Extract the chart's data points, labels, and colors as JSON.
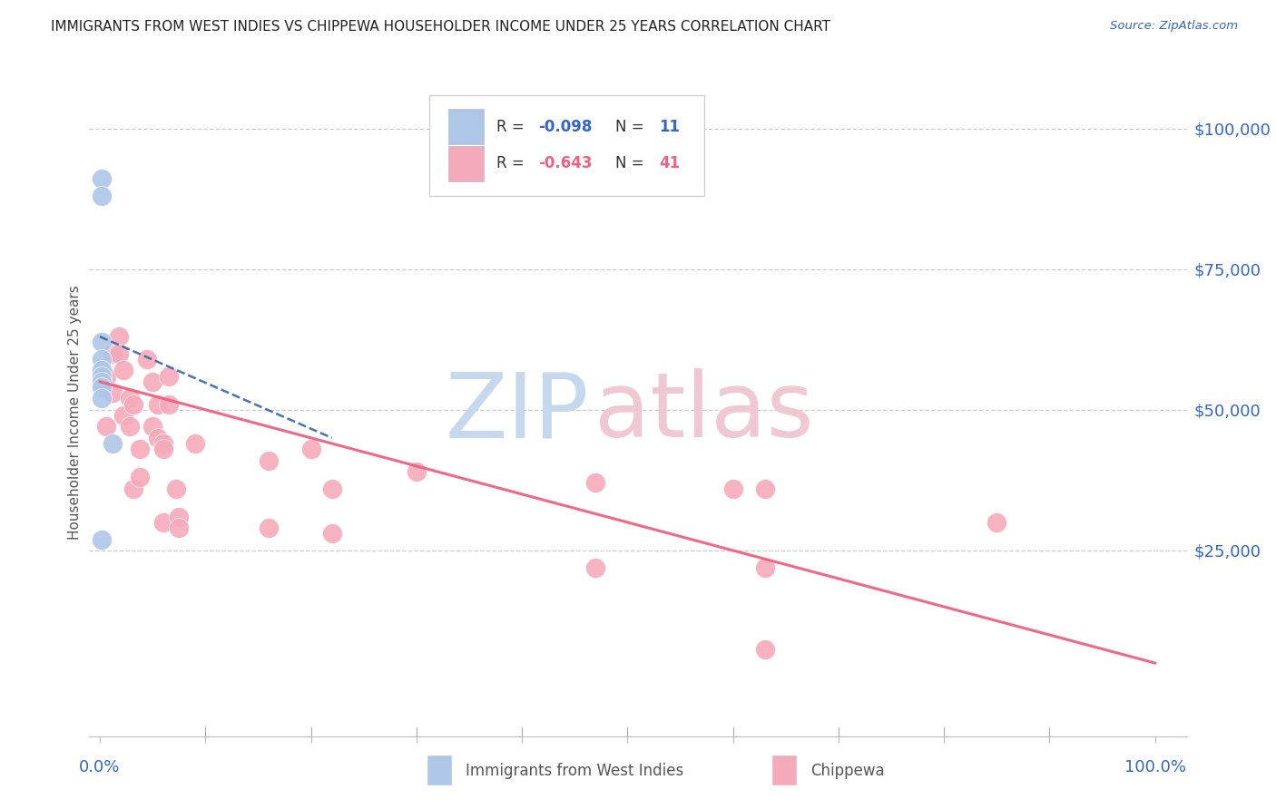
{
  "title": "IMMIGRANTS FROM WEST INDIES VS CHIPPEWA HOUSEHOLDER INCOME UNDER 25 YEARS CORRELATION CHART",
  "source": "Source: ZipAtlas.com",
  "ylabel": "Householder Income Under 25 years",
  "legend1_label": "Immigrants from West Indies",
  "legend2_label": "Chippewa",
  "r1": "-0.098",
  "n1": "11",
  "r2": "-0.643",
  "n2": "41",
  "blue_color": "#aec6e8",
  "pink_color": "#f5aabb",
  "blue_line_color": "#3366aa",
  "pink_line_color": "#f06080",
  "grid_color": "#cccccc",
  "title_color": "#222222",
  "tick_color": "#3366cc",
  "watermark_zip_color": "#c5d8ee",
  "watermark_atlas_color": "#f0c8d4",
  "blue_points_x": [
    0.002,
    0.002,
    0.002,
    0.002,
    0.002,
    0.002,
    0.002,
    0.002,
    0.002,
    0.012,
    0.002
  ],
  "blue_points_y": [
    91000,
    88000,
    62000,
    59000,
    57000,
    56000,
    55000,
    54000,
    52000,
    44000,
    27000
  ],
  "pink_points_x": [
    0.006,
    0.006,
    0.012,
    0.012,
    0.018,
    0.018,
    0.022,
    0.022,
    0.028,
    0.028,
    0.032,
    0.032,
    0.038,
    0.038,
    0.045,
    0.05,
    0.05,
    0.055,
    0.055,
    0.06,
    0.06,
    0.06,
    0.065,
    0.065,
    0.072,
    0.075,
    0.075,
    0.09,
    0.16,
    0.16,
    0.2,
    0.22,
    0.22,
    0.3,
    0.47,
    0.47,
    0.6,
    0.63,
    0.63,
    0.85,
    0.63
  ],
  "pink_points_y": [
    56000,
    47000,
    60000,
    53000,
    63000,
    60000,
    57000,
    49000,
    52000,
    47000,
    51000,
    36000,
    43000,
    38000,
    59000,
    55000,
    47000,
    51000,
    45000,
    44000,
    43000,
    30000,
    56000,
    51000,
    36000,
    31000,
    29000,
    44000,
    41000,
    29000,
    43000,
    36000,
    28000,
    39000,
    37000,
    22000,
    36000,
    36000,
    22000,
    30000,
    7500
  ],
  "blue_trendline_x": [
    0.0,
    0.22
  ],
  "blue_trendline_y": [
    63000,
    45000
  ],
  "pink_trendline_x": [
    0.0,
    1.0
  ],
  "pink_trendline_y": [
    55000,
    5000
  ],
  "ylim_min": -8000,
  "ylim_max": 107000,
  "xlim_min": -0.01,
  "xlim_max": 1.03,
  "figsize": [
    14.06,
    8.92
  ],
  "dpi": 100
}
